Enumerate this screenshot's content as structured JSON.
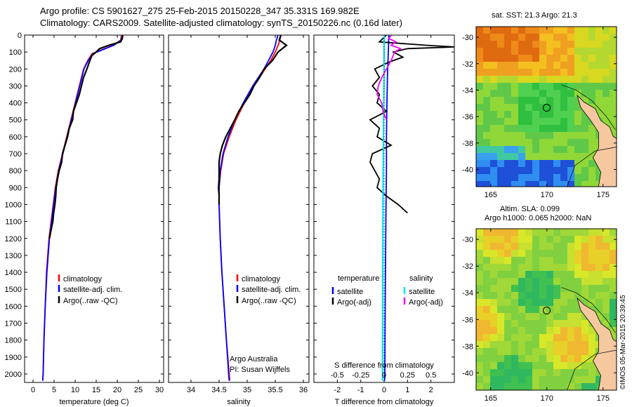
{
  "titles": {
    "line1": "Argo profile: CS 5901627_275 25-Feb-2015 20150228_347 35.331S 169.982E",
    "line2": "Climatology: CARS2009. Satellite-adjusted climatology: synTS_20150226.nc (0.16d later)",
    "sst": "sat. SST: 21.3 Argo: 21.3",
    "sla1": "Altim. SLA: 0.099",
    "sla2": "Argo h1000: 0.065 h2000: NaN",
    "timestamp": "©IMOS 05-Mar-2015 20:39:45"
  },
  "colors": {
    "climatology": "#ff0000",
    "satellite": "#0000ff",
    "argo": "#000000",
    "salinity_sat": "#00e5ee",
    "salinity_argo": "#ee00ee"
  },
  "chart_data": [
    {
      "type": "line",
      "xlabel": "temperature (deg C)",
      "xticks": [
        "0",
        "5",
        "10",
        "15",
        "20",
        "25",
        "30"
      ],
      "yticks": [
        "0",
        "100",
        "200",
        "300",
        "400",
        "500",
        "600",
        "700",
        "800",
        "900",
        "1000",
        "1100",
        "1200",
        "1300",
        "1400",
        "1500",
        "1600",
        "1700",
        "1800",
        "1900",
        "2000"
      ],
      "xlim": [
        -2,
        31
      ],
      "ylim": [
        2050,
        0
      ],
      "legend": [
        "climatology",
        "satellite-adj. clim.",
        "Argo(..raw -QC)"
      ],
      "series": [
        {
          "name": "climatology",
          "y": [
            0,
            30,
            60,
            90,
            110,
            150,
            200,
            300,
            400,
            500,
            600,
            700,
            800,
            900,
            1000,
            1200,
            1400,
            1600,
            1800,
            2000,
            2040
          ],
          "x": [
            21,
            20.8,
            19,
            16,
            14,
            13,
            12,
            11,
            10,
            9,
            8,
            7,
            6,
            5.3,
            4.8,
            3.8,
            3.2,
            2.9,
            2.6,
            2.4,
            2.3
          ]
        },
        {
          "name": "satellite-adj. clim.",
          "y": [
            0,
            30,
            60,
            90,
            110,
            150,
            200,
            300,
            400,
            500,
            600,
            700,
            800,
            900,
            1000,
            1200,
            1400,
            1600,
            1800,
            2000,
            2040
          ],
          "x": [
            21.2,
            20.9,
            19.2,
            16.2,
            14.2,
            13.1,
            12.1,
            11.1,
            10.1,
            9.1,
            8.1,
            7.1,
            6.1,
            5.4,
            4.9,
            3.9,
            3.3,
            2.9,
            2.6,
            2.4,
            2.3
          ]
        },
        {
          "name": "Argo(..raw -QC)",
          "y": [
            0,
            20,
            40,
            60,
            80,
            100,
            120,
            150,
            200,
            250,
            300,
            350,
            400,
            450,
            500,
            550,
            600,
            650,
            700,
            750,
            800,
            850,
            900,
            950,
            1000,
            1050,
            1100,
            1200
          ],
          "x": [
            21.3,
            21.2,
            20.8,
            18,
            15.8,
            15,
            14,
            13.5,
            12.8,
            12,
            11.5,
            11,
            10.3,
            9.6,
            9.4,
            8.6,
            8.2,
            7.6,
            7,
            6.8,
            6.2,
            5.8,
            5.5,
            5.4,
            5.2,
            4.9,
            4.7,
            3.9
          ]
        }
      ]
    },
    {
      "type": "line",
      "xlabel": "salinity",
      "xticks": [
        "34",
        "34.5",
        "35",
        "35.5",
        "36"
      ],
      "xlim": [
        33.6,
        36.1
      ],
      "ylim": [
        2050,
        0
      ],
      "legend": [
        "climatology",
        "satellite-adj. clim.",
        "Argo(..raw -QC)"
      ],
      "annotation": [
        "Argo Australia",
        "PI: Susan Wijffels"
      ],
      "series": [
        {
          "name": "climatology",
          "y": [
            0,
            30,
            60,
            100,
            150,
            200,
            300,
            400,
            500,
            600,
            700,
            800,
            900,
            1000,
            1200,
            1400,
            1600,
            1800,
            2000,
            2040
          ],
          "x": [
            35.6,
            35.58,
            35.55,
            35.5,
            35.42,
            35.32,
            35.12,
            34.95,
            34.8,
            34.68,
            34.58,
            34.53,
            34.5,
            34.5,
            34.52,
            34.55,
            34.59,
            34.63,
            34.68,
            34.69
          ]
        },
        {
          "name": "satellite-adj. clim.",
          "y": [
            0,
            30,
            60,
            100,
            150,
            200,
            300,
            400,
            500,
            600,
            700,
            800,
            900,
            1000,
            1200,
            1400,
            1600,
            1800,
            2000,
            2040
          ],
          "x": [
            35.55,
            35.52,
            35.5,
            35.46,
            35.38,
            35.3,
            35.1,
            34.93,
            34.78,
            34.66,
            34.57,
            34.52,
            34.5,
            34.5,
            34.52,
            34.55,
            34.59,
            34.63,
            34.67,
            34.68
          ]
        },
        {
          "name": "Argo(..raw -QC)",
          "y": [
            0,
            30,
            60,
            100,
            150,
            200,
            250,
            300,
            350,
            400,
            450,
            500,
            550,
            600,
            650,
            700,
            750,
            800,
            850,
            900,
            950,
            1000
          ],
          "x": [
            35.6,
            35.57,
            35.7,
            35.55,
            35.45,
            35.3,
            35.22,
            35.12,
            35.05,
            34.95,
            34.85,
            34.78,
            34.7,
            34.62,
            34.56,
            34.52,
            34.5,
            34.5,
            34.5,
            34.49,
            34.5,
            34.5
          ]
        }
      ]
    },
    {
      "type": "line",
      "xlabel": "T difference from climatology",
      "xlabel_top": "S difference from climatology",
      "xticks": [
        "-2",
        "-1",
        "0",
        "1",
        "2"
      ],
      "xticks_s": [
        "-0.5",
        "-0.25",
        "0",
        "0.25",
        "0.5"
      ],
      "xlim": [
        -3,
        3
      ],
      "ylim": [
        2050,
        0
      ],
      "legend_headers": [
        "temperature",
        "salinity"
      ],
      "legend_temperature": [
        "satellite",
        "Argo(-adj)"
      ],
      "legend_salinity": [
        "satellite",
        "Argo(-adj)"
      ],
      "series": [
        {
          "name": "temperature satellite",
          "y": [
            0,
            100,
            200,
            400,
            600,
            800,
            1000,
            1500,
            2000,
            2040
          ],
          "x": [
            0.2,
            0.18,
            0.15,
            0.12,
            0.1,
            0.1,
            0.08,
            0.05,
            0.03,
            0.02
          ]
        },
        {
          "name": "temperature Argo(-adj)",
          "y": [
            0,
            40,
            60,
            70,
            80,
            100,
            130,
            160,
            200,
            250,
            300,
            350,
            400,
            450,
            500,
            550,
            600,
            650,
            700,
            750,
            800,
            850,
            900,
            950,
            1000,
            1050
          ],
          "x": [
            0.1,
            -0.2,
            1.8,
            3.0,
            1.0,
            0.4,
            0.8,
            0.2,
            -0.4,
            -0.2,
            -0.5,
            -0.2,
            -0.3,
            0.1,
            -0.6,
            -0.2,
            -0.3,
            0.3,
            -0.5,
            -0.6,
            -0.4,
            -0.2,
            -0.3,
            0.1,
            0.6,
            1.0
          ]
        },
        {
          "name": "salinity satellite",
          "y": [
            0,
            100,
            200,
            500,
            1000,
            1500,
            2000,
            2040
          ],
          "x": [
            0.0,
            0.0,
            0.0,
            -0.02,
            -0.05,
            -0.06,
            -0.07,
            -0.07
          ]
        },
        {
          "name": "salinity Argo(-adj)",
          "y": [
            0,
            20,
            40,
            60,
            80,
            100,
            150,
            200,
            250,
            300,
            350,
            400,
            450,
            500
          ],
          "x": [
            0.3,
            0.2,
            0.5,
            0.3,
            0.7,
            0.45,
            0.3,
            0.1,
            -0.1,
            -0.25,
            -0.3,
            -0.1,
            -0.05,
            0.1
          ]
        }
      ]
    },
    {
      "type": "heatmap",
      "title": "sat. SST: 21.3 Argo: 21.3",
      "xticks": [
        "165",
        "170",
        "175"
      ],
      "yticks": [
        "-30",
        "-32",
        "-34",
        "-36",
        "-38",
        "-40"
      ],
      "xlim": [
        163.7,
        176.2
      ],
      "ylim": [
        -41.3,
        -29.2
      ],
      "argo_position": {
        "lon": 169.982,
        "lat": -35.331
      }
    },
    {
      "type": "heatmap",
      "title": "Altim. SLA: 0.099",
      "xticks": [
        "165",
        "170",
        "175"
      ],
      "yticks": [
        "-30",
        "-32",
        "-34",
        "-36",
        "-38",
        "-40"
      ],
      "xlim": [
        163.7,
        176.2
      ],
      "ylim": [
        -41.3,
        -29.2
      ],
      "argo_position": {
        "lon": 169.982,
        "lat": -35.331
      }
    }
  ]
}
